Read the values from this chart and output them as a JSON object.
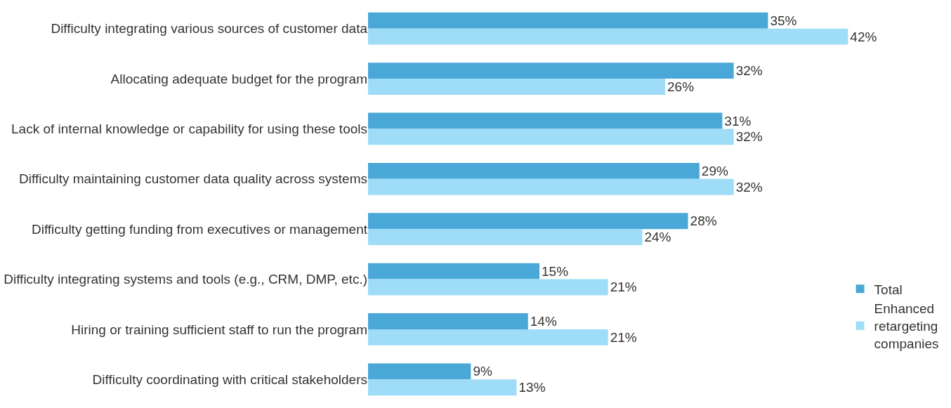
{
  "chart_data": {
    "type": "bar",
    "orientation": "horizontal",
    "legend": "bottom right",
    "categories": [
      "Difficulty integrating various sources of customer data",
      "Allocating adequate budget for the program",
      "Lack of internal knowledge or capability for using these tools",
      "Difficulty maintaining customer data quality across systems",
      "Difficulty getting funding from executives or management",
      "Difficulty integrating systems and tools (e.g., CRM, DMP, etc.)",
      "Hiring or training sufficient staff to run the program",
      "Difficulty coordinating with critical stakeholders"
    ],
    "series": [
      {
        "name": "Total",
        "color": "#4aa8d8",
        "values": [
          35,
          32,
          31,
          29,
          28,
          15,
          14,
          9
        ],
        "value_labels": [
          "35%",
          "32%",
          "31%",
          "29%",
          "28%",
          "15%",
          "14%",
          "9%"
        ]
      },
      {
        "name": "Enhanced retargeting companies",
        "color": "#9edcf7",
        "values": [
          42,
          26,
          32,
          32,
          24,
          21,
          21,
          13
        ],
        "value_labels": [
          "42%",
          "26%",
          "32%",
          "32%",
          "24%",
          "21%",
          "21%",
          "13%"
        ]
      }
    ]
  }
}
